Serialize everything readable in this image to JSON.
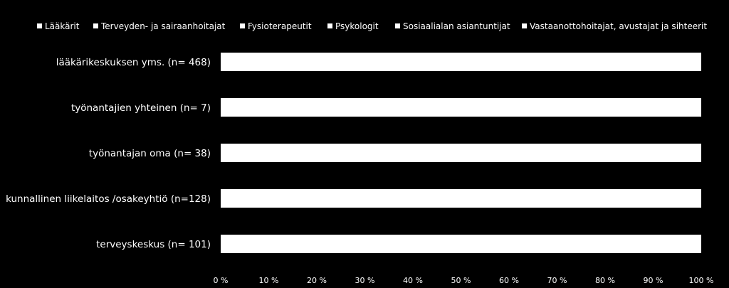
{
  "chart_data": {
    "type": "bar",
    "orientation": "horizontal",
    "stacked": true,
    "percent_stacked": true,
    "categories": [
      "lääkärikeskuksen yms. (n= 468)",
      "työnantajien yhteinen (n= 7)",
      "työnantajan oma (n= 38)",
      "kunnallinen liikelaitos /osakeyhtiö (n=128)",
      "terveyskeskus (n= 101)"
    ],
    "series": [
      {
        "name": "Lääkärit",
        "values": [
          100,
          100,
          100,
          100,
          100
        ]
      },
      {
        "name": "Terveyden- ja sairaanhoitajat",
        "values": [
          0,
          0,
          0,
          0,
          0
        ]
      },
      {
        "name": "Fysioterapeutit",
        "values": [
          0,
          0,
          0,
          0,
          0
        ]
      },
      {
        "name": "Psykologit",
        "values": [
          0,
          0,
          0,
          0,
          0
        ]
      },
      {
        "name": "Sosiaalialan asiantuntijat",
        "values": [
          0,
          0,
          0,
          0,
          0
        ]
      },
      {
        "name": "Vastaanottohoitajat, avustajat ja sihteerit",
        "values": [
          0,
          0,
          0,
          0,
          0
        ]
      }
    ],
    "x_ticks": [
      "0 %",
      "10 %",
      "20 %",
      "30 %",
      "40 %",
      "50 %",
      "60 %",
      "70 %",
      "80 %",
      "90 %",
      "100 %"
    ],
    "xlim": [
      0,
      100
    ],
    "title": "",
    "xlabel": "",
    "ylabel": "",
    "legend_position": "top",
    "grid": false,
    "colors": {
      "background": "#000000",
      "bar": "#ffffff",
      "text": "#ffffff"
    }
  }
}
